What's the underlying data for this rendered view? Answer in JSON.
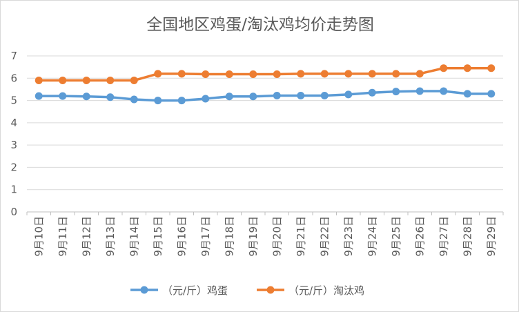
{
  "chart_data": {
    "type": "line",
    "title": "全国地区鸡蛋/淘汰鸡均价走势图",
    "xlabel": "",
    "ylabel": "",
    "categories": [
      "9月10日",
      "9月11日",
      "9月12日",
      "9月13日",
      "9月14日",
      "9月15日",
      "9月16日",
      "9月17日",
      "9月18日",
      "9月19日",
      "9月20日",
      "9月21日",
      "9月22日",
      "9月23日",
      "9月24日",
      "9月25日",
      "9月26日",
      "9月27日",
      "9月28日",
      "9月29日"
    ],
    "ylim": [
      0,
      7
    ],
    "yticks": [
      "0",
      "1",
      "2",
      "3",
      "4",
      "5",
      "6",
      "7"
    ],
    "grid": true,
    "legend_position": "bottom",
    "series": [
      {
        "name": "（元/斤）鸡蛋",
        "color": "#5b9bd5",
        "values": [
          5.2,
          5.2,
          5.18,
          5.15,
          5.05,
          5.0,
          5.0,
          5.08,
          5.18,
          5.18,
          5.22,
          5.22,
          5.22,
          5.27,
          5.35,
          5.4,
          5.42,
          5.42,
          5.3,
          5.3
        ]
      },
      {
        "name": "（元/斤）淘汰鸡",
        "color": "#ed7d31",
        "values": [
          5.9,
          5.9,
          5.9,
          5.9,
          5.9,
          6.2,
          6.2,
          6.18,
          6.18,
          6.18,
          6.18,
          6.2,
          6.2,
          6.2,
          6.2,
          6.2,
          6.2,
          6.45,
          6.45,
          6.45
        ]
      }
    ]
  }
}
